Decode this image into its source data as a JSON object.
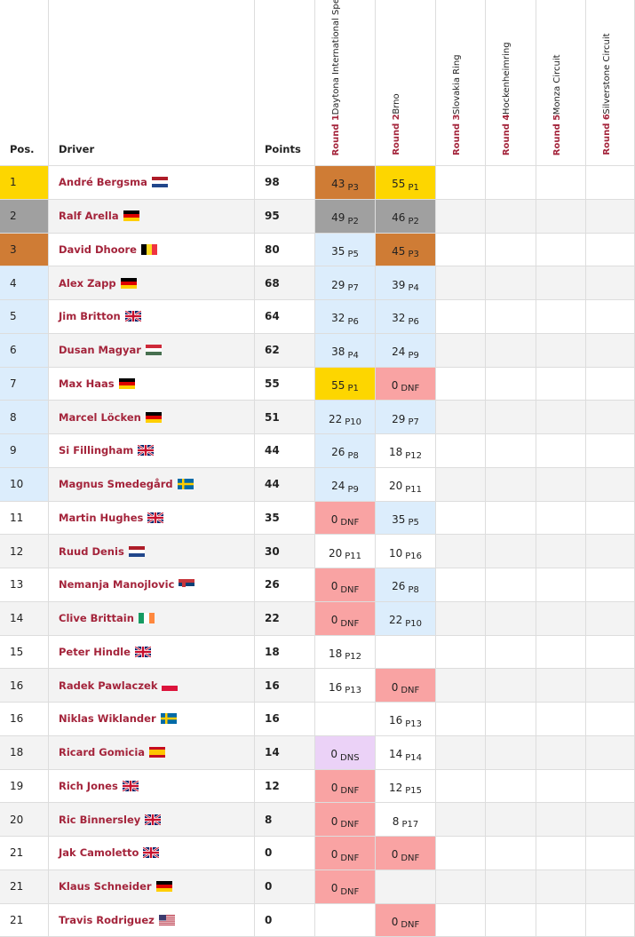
{
  "table": {
    "headers": {
      "pos": "Pos.",
      "driver": "Driver",
      "points": "Points"
    },
    "rounds": [
      {
        "label": "Round 1",
        "venue": "Daytona International Speedway"
      },
      {
        "label": "Round 2",
        "venue": "Brno"
      },
      {
        "label": "Round 3",
        "venue": "Slovakia Ring"
      },
      {
        "label": "Round 4",
        "venue": "Hockenheimring"
      },
      {
        "label": "Round 5",
        "venue": "Monza Circuit"
      },
      {
        "label": "Round 6",
        "venue": "Silverstone Circuit"
      }
    ],
    "rows": [
      {
        "pos": 1,
        "pos_style": "gold",
        "driver": "André Bergsma",
        "flag": "nl",
        "points": 98,
        "results": [
          {
            "points": 43,
            "finish": "P3",
            "style": "bronze"
          },
          {
            "points": 55,
            "finish": "P1",
            "style": "gold"
          }
        ]
      },
      {
        "pos": 2,
        "pos_style": "silver",
        "driver": "Ralf Arella",
        "flag": "de",
        "points": 95,
        "results": [
          {
            "points": 49,
            "finish": "P2",
            "style": "silver"
          },
          {
            "points": 46,
            "finish": "P2",
            "style": "silver"
          }
        ]
      },
      {
        "pos": 3,
        "pos_style": "bronze",
        "driver": "David Dhoore",
        "flag": "be",
        "points": 80,
        "results": [
          {
            "points": 35,
            "finish": "P5",
            "style": "blue"
          },
          {
            "points": 45,
            "finish": "P3",
            "style": "bronze"
          }
        ]
      },
      {
        "pos": 4,
        "pos_style": "blue",
        "driver": "Alex Zapp",
        "flag": "de",
        "points": 68,
        "results": [
          {
            "points": 29,
            "finish": "P7",
            "style": "blue"
          },
          {
            "points": 39,
            "finish": "P4",
            "style": "blue"
          }
        ]
      },
      {
        "pos": 5,
        "pos_style": "blue",
        "driver": "Jim Britton",
        "flag": "gb",
        "points": 64,
        "results": [
          {
            "points": 32,
            "finish": "P6",
            "style": "blue"
          },
          {
            "points": 32,
            "finish": "P6",
            "style": "blue"
          }
        ]
      },
      {
        "pos": 6,
        "pos_style": "blue",
        "driver": "Dusan Magyar",
        "flag": "hu",
        "points": 62,
        "results": [
          {
            "points": 38,
            "finish": "P4",
            "style": "blue"
          },
          {
            "points": 24,
            "finish": "P9",
            "style": "blue"
          }
        ]
      },
      {
        "pos": 7,
        "pos_style": "blue",
        "driver": "Max Haas",
        "flag": "de",
        "points": 55,
        "results": [
          {
            "points": 55,
            "finish": "P1",
            "style": "gold"
          },
          {
            "points": 0,
            "finish": "DNF",
            "style": "dnf"
          }
        ]
      },
      {
        "pos": 8,
        "pos_style": "blue",
        "driver": "Marcel Löcken",
        "flag": "de",
        "points": 51,
        "results": [
          {
            "points": 22,
            "finish": "P10",
            "style": "blue"
          },
          {
            "points": 29,
            "finish": "P7",
            "style": "blue"
          }
        ]
      },
      {
        "pos": 9,
        "pos_style": "blue",
        "driver": "Si Fillingham",
        "flag": "gb",
        "points": 44,
        "results": [
          {
            "points": 26,
            "finish": "P8",
            "style": "blue"
          },
          {
            "points": 18,
            "finish": "P12",
            "style": "white"
          }
        ]
      },
      {
        "pos": 10,
        "pos_style": "blue",
        "driver": "Magnus Smedegård",
        "flag": "se",
        "points": 44,
        "results": [
          {
            "points": 24,
            "finish": "P9",
            "style": "blue"
          },
          {
            "points": 20,
            "finish": "P11",
            "style": "white"
          }
        ]
      },
      {
        "pos": 11,
        "pos_style": "none",
        "driver": "Martin Hughes",
        "flag": "gb",
        "points": 35,
        "results": [
          {
            "points": 0,
            "finish": "DNF",
            "style": "dnf"
          },
          {
            "points": 35,
            "finish": "P5",
            "style": "blue"
          }
        ]
      },
      {
        "pos": 12,
        "pos_style": "none",
        "driver": "Ruud Denis",
        "flag": "nl",
        "points": 30,
        "results": [
          {
            "points": 20,
            "finish": "P11",
            "style": "white"
          },
          {
            "points": 10,
            "finish": "P16",
            "style": "white"
          }
        ]
      },
      {
        "pos": 13,
        "pos_style": "none",
        "driver": "Nemanja Manojlovic",
        "flag": "rs",
        "points": 26,
        "results": [
          {
            "points": 0,
            "finish": "DNF",
            "style": "dnf"
          },
          {
            "points": 26,
            "finish": "P8",
            "style": "blue"
          }
        ]
      },
      {
        "pos": 14,
        "pos_style": "none",
        "driver": "Clive Brittain",
        "flag": "ie",
        "points": 22,
        "results": [
          {
            "points": 0,
            "finish": "DNF",
            "style": "dnf"
          },
          {
            "points": 22,
            "finish": "P10",
            "style": "blue"
          }
        ]
      },
      {
        "pos": 15,
        "pos_style": "none",
        "driver": "Peter Hindle",
        "flag": "gb",
        "points": 18,
        "results": [
          {
            "points": 18,
            "finish": "P12",
            "style": "white"
          }
        ]
      },
      {
        "pos": 16,
        "pos_style": "none",
        "driver": "Radek Pawlaczek",
        "flag": "pl",
        "points": 16,
        "results": [
          {
            "points": 16,
            "finish": "P13",
            "style": "white"
          },
          {
            "points": 0,
            "finish": "DNF",
            "style": "dnf"
          }
        ]
      },
      {
        "pos": 16,
        "pos_style": "none",
        "driver": "Niklas Wiklander",
        "flag": "se",
        "points": 16,
        "results": [
          null,
          {
            "points": 16,
            "finish": "P13",
            "style": "white"
          }
        ]
      },
      {
        "pos": 18,
        "pos_style": "none",
        "driver": "Ricard Gomicia",
        "flag": "es",
        "points": 14,
        "results": [
          {
            "points": 0,
            "finish": "DNS",
            "style": "dns"
          },
          {
            "points": 14,
            "finish": "P14",
            "style": "white"
          }
        ]
      },
      {
        "pos": 19,
        "pos_style": "none",
        "driver": "Rich Jones",
        "flag": "gb",
        "points": 12,
        "results": [
          {
            "points": 0,
            "finish": "DNF",
            "style": "dnf"
          },
          {
            "points": 12,
            "finish": "P15",
            "style": "white"
          }
        ]
      },
      {
        "pos": 20,
        "pos_style": "none",
        "driver": "Ric Binnersley",
        "flag": "gb",
        "points": 8,
        "results": [
          {
            "points": 0,
            "finish": "DNF",
            "style": "dnf"
          },
          {
            "points": 8,
            "finish": "P17",
            "style": "white"
          }
        ]
      },
      {
        "pos": 21,
        "pos_style": "none",
        "driver": "Jak Camoletto",
        "flag": "gb",
        "points": 0,
        "results": [
          {
            "points": 0,
            "finish": "DNF",
            "style": "dnf"
          },
          {
            "points": 0,
            "finish": "DNF",
            "style": "dnf"
          }
        ]
      },
      {
        "pos": 21,
        "pos_style": "none",
        "driver": "Klaus Schneider",
        "flag": "de",
        "points": 0,
        "results": [
          {
            "points": 0,
            "finish": "DNF",
            "style": "dnf"
          }
        ]
      },
      {
        "pos": 21,
        "pos_style": "none",
        "driver": "Travis Rodriguez",
        "flag": "us",
        "points": 0,
        "results": [
          null,
          {
            "points": 0,
            "finish": "DNF",
            "style": "dnf"
          }
        ]
      }
    ]
  }
}
